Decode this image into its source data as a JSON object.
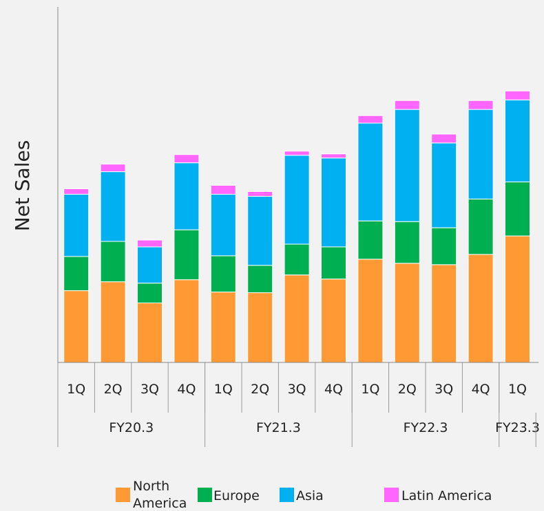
{
  "chart_data": {
    "type": "bar",
    "stacked": true,
    "ylabel": "Net Sales",
    "categories": [
      "1Q",
      "2Q",
      "3Q",
      "4Q",
      "1Q",
      "2Q",
      "3Q",
      "4Q",
      "1Q",
      "2Q",
      "3Q",
      "4Q",
      "1Q"
    ],
    "groups": [
      {
        "label": "FY20.3",
        "count": 4
      },
      {
        "label": "FY21.3",
        "count": 4
      },
      {
        "label": "FY22.3",
        "count": 4
      },
      {
        "label": "FY23.3",
        "count": 1
      }
    ],
    "series": [
      {
        "name": "North America",
        "color": "#ff9933",
        "values": [
          105,
          118,
          87,
          121,
          103,
          102,
          128,
          122,
          151,
          145,
          143,
          158,
          185
        ]
      },
      {
        "name": "Europe",
        "color": "#00b050",
        "values": [
          50,
          59,
          29,
          73,
          53,
          40,
          45,
          47,
          56,
          61,
          54,
          81,
          79
        ]
      },
      {
        "name": "Asia",
        "color": "#00b0f0",
        "values": [
          91,
          102,
          53,
          98,
          90,
          101,
          130,
          130,
          143,
          164,
          124,
          131,
          120
        ]
      },
      {
        "name": "Latin America",
        "color": "#ff66ff",
        "values": [
          8,
          11,
          10,
          12,
          13,
          7,
          6,
          6,
          11,
          13,
          13,
          13,
          13
        ]
      }
    ],
    "ylim": [
      0,
      520
    ],
    "grid": false,
    "legend_position": "bottom"
  }
}
